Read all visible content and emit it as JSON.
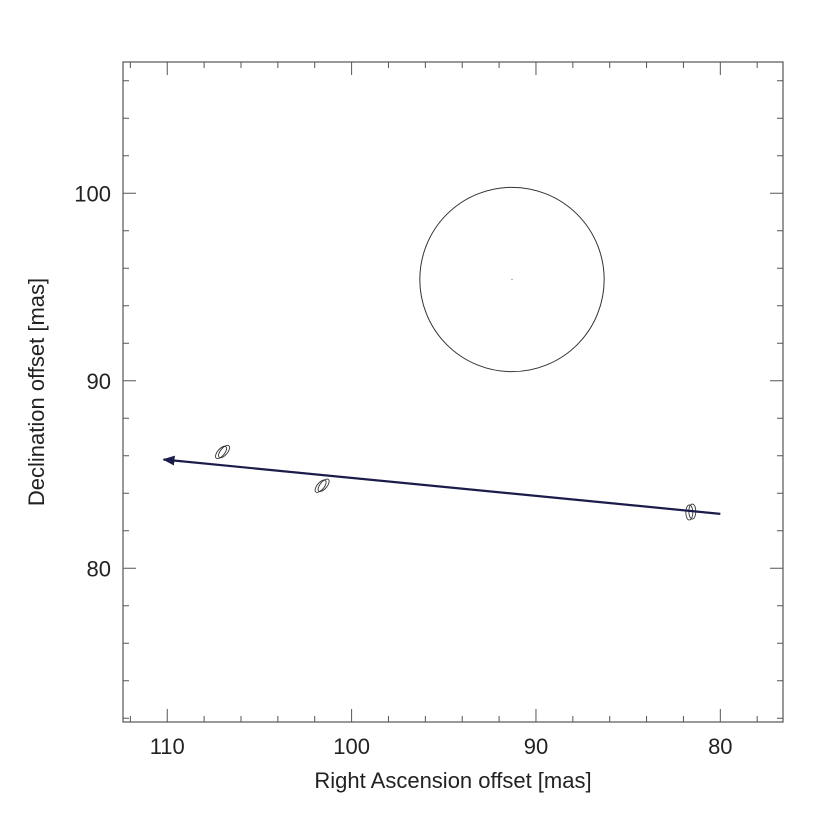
{
  "chart_data": {
    "type": "scatter",
    "xlabel": "Right Ascension offset [mas]",
    "ylabel": "Declination offset [mas]",
    "xlim": [
      112.4,
      76.6
    ],
    "ylim": [
      71.8,
      107.0
    ],
    "x_ticks": [
      110,
      100,
      90,
      80
    ],
    "y_ticks": [
      80,
      90,
      100
    ],
    "x_tick_labels": [
      "110",
      "100",
      "90",
      "80"
    ],
    "y_tick_labels": [
      "80",
      "90",
      "100"
    ],
    "grid": false,
    "legend": "none",
    "circle": {
      "center_x": 91.3,
      "center_y": 95.4,
      "radius": 5.0
    },
    "points": [
      {
        "x": 107.0,
        "y": 86.2,
        "ellipses": 2
      },
      {
        "x": 101.6,
        "y": 84.4,
        "ellipses": 2
      },
      {
        "x": 81.6,
        "y": 83.0,
        "ellipses": 2
      }
    ],
    "arrow": {
      "from": [
        80.0,
        82.9
      ],
      "to": [
        110.2,
        85.8
      ]
    },
    "colors": {
      "arrow": "#1c1c4a",
      "axes": "#555555",
      "marks": "#333333"
    }
  }
}
